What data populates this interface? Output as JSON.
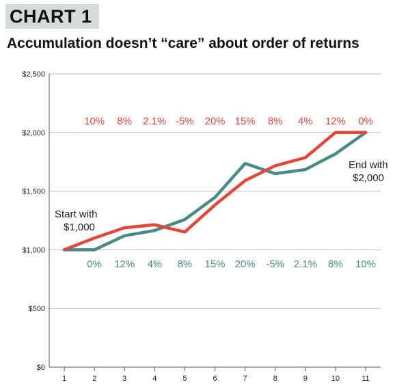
{
  "header": {
    "tag": "CHART 1",
    "title": "Accumulation doesn’t “care” about order of returns"
  },
  "chart_data": {
    "type": "line",
    "x": [
      1,
      2,
      3,
      4,
      5,
      6,
      7,
      8,
      9,
      10,
      11
    ],
    "ylim": [
      0,
      2500
    ],
    "yticks": [
      0,
      500,
      1000,
      1500,
      2000,
      2500
    ],
    "ytick_labels": [
      "$0",
      "$500",
      "$1,000",
      "$1,500",
      "$2,000",
      "$2,500"
    ],
    "grid": "horizontal",
    "series": [
      {
        "color": "#e0493a",
        "values": [
          1000,
          1100,
          1188,
          1213,
          1152,
          1382,
          1590,
          1717,
          1786,
          2000,
          2000
        ],
        "returns_shown": [
          "10%",
          "8%",
          "2.1%",
          "-5%",
          "20%",
          "15%",
          "8%",
          "4%",
          "12%",
          "0%"
        ]
      },
      {
        "color": "#4a8a86",
        "values": [
          1000,
          1000,
          1120,
          1165,
          1258,
          1447,
          1736,
          1649,
          1684,
          1818,
          2000
        ],
        "returns_shown": [
          "0%",
          "12%",
          "4%",
          "8%",
          "15%",
          "20%",
          "-5%",
          "2.1%",
          "8%",
          "10%"
        ]
      }
    ],
    "annotations": {
      "start": [
        "Start with",
        "$1,000"
      ],
      "end": [
        "End with",
        "$2,000"
      ]
    }
  }
}
